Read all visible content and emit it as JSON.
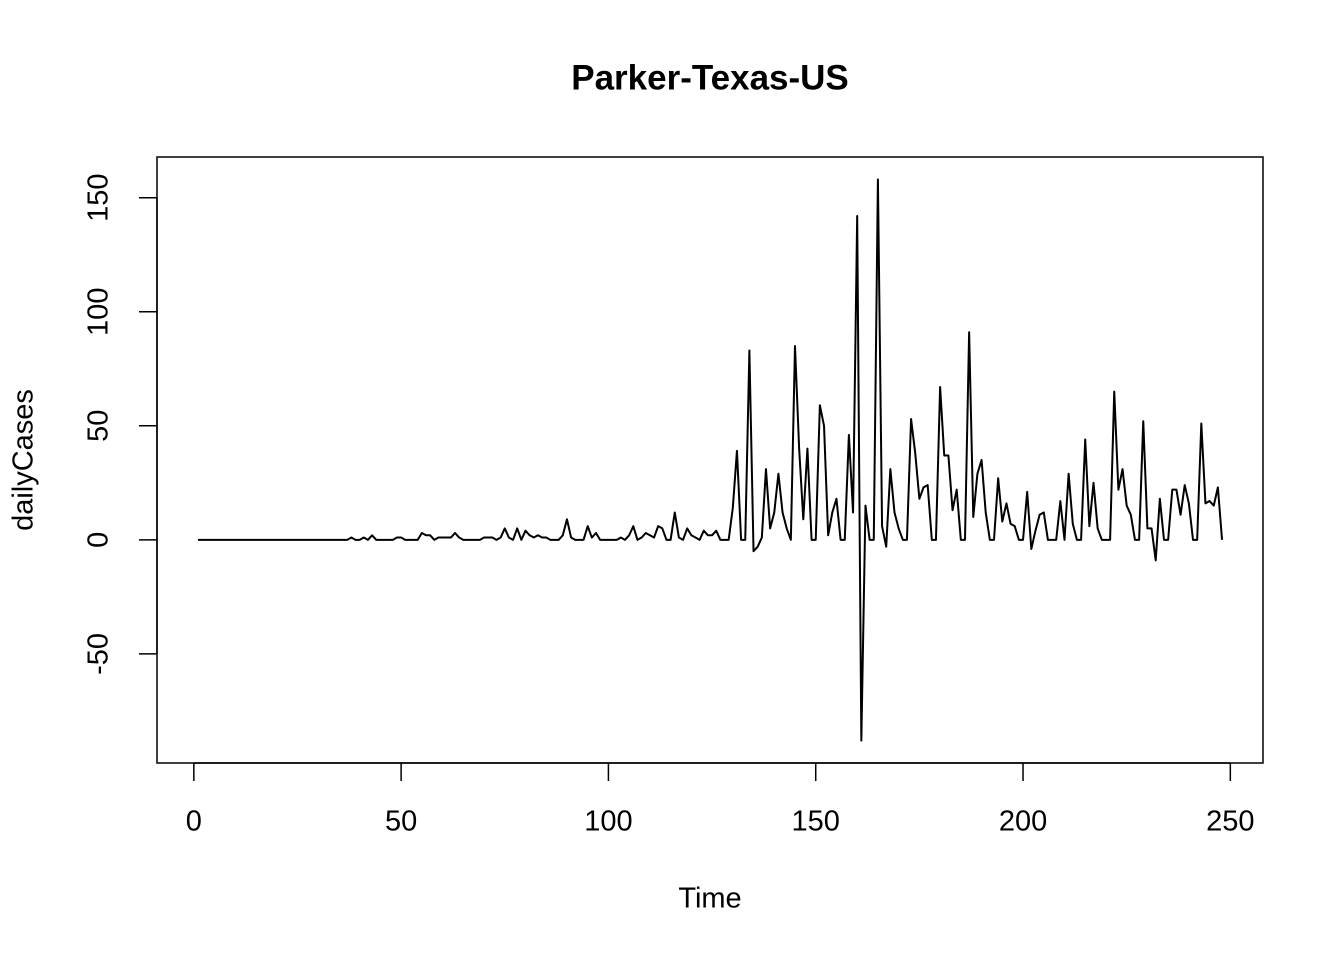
{
  "chart_data": {
    "type": "line",
    "title": "Parker-Texas-US",
    "x_label": "Time",
    "y_label": "dailyCases",
    "xlim": [
      -8.88,
      257.88
    ],
    "ylim": [
      -97.84,
      167.84
    ],
    "xticks": [
      0,
      50,
      100,
      150,
      200,
      250
    ],
    "yticks": [
      -50,
      0,
      50,
      100,
      150
    ],
    "x": [
      1,
      2,
      3,
      4,
      5,
      6,
      7,
      8,
      9,
      10,
      11,
      12,
      13,
      14,
      15,
      16,
      17,
      18,
      19,
      20,
      21,
      22,
      23,
      24,
      25,
      26,
      27,
      28,
      29,
      30,
      31,
      32,
      33,
      34,
      35,
      36,
      37,
      38,
      39,
      40,
      41,
      42,
      43,
      44,
      45,
      46,
      47,
      48,
      49,
      50,
      51,
      52,
      53,
      54,
      55,
      56,
      57,
      58,
      59,
      60,
      61,
      62,
      63,
      64,
      65,
      66,
      67,
      68,
      69,
      70,
      71,
      72,
      73,
      74,
      75,
      76,
      77,
      78,
      79,
      80,
      81,
      82,
      83,
      84,
      85,
      86,
      87,
      88,
      89,
      90,
      91,
      92,
      93,
      94,
      95,
      96,
      97,
      98,
      99,
      100,
      101,
      102,
      103,
      104,
      105,
      106,
      107,
      108,
      109,
      110,
      111,
      112,
      113,
      114,
      115,
      116,
      117,
      118,
      119,
      120,
      121,
      122,
      123,
      124,
      125,
      126,
      127,
      128,
      129,
      130,
      131,
      132,
      133,
      134,
      135,
      136,
      137,
      138,
      139,
      140,
      141,
      142,
      143,
      144,
      145,
      146,
      147,
      148,
      149,
      150,
      151,
      152,
      153,
      154,
      155,
      156,
      157,
      158,
      159,
      160,
      161,
      162,
      163,
      164,
      165,
      166,
      167,
      168,
      169,
      170,
      171,
      172,
      173,
      174,
      175,
      176,
      177,
      178,
      179,
      180,
      181,
      182,
      183,
      184,
      185,
      186,
      187,
      188,
      189,
      190,
      191,
      192,
      193,
      194,
      195,
      196,
      197,
      198,
      199,
      200,
      201,
      202,
      203,
      204,
      205,
      206,
      207,
      208,
      209,
      210,
      211,
      212,
      213,
      214,
      215,
      216,
      217,
      218,
      219,
      220,
      221,
      222,
      223,
      224,
      225,
      226,
      227,
      228,
      229,
      230,
      231,
      232,
      233,
      234,
      235,
      236,
      237,
      238,
      239,
      240,
      241,
      242,
      243,
      244,
      245,
      246,
      247,
      248
    ],
    "series": [
      {
        "name": "dailyCases",
        "color": "#000000",
        "values": [
          0,
          0,
          0,
          0,
          0,
          0,
          0,
          0,
          0,
          0,
          0,
          0,
          0,
          0,
          0,
          0,
          0,
          0,
          0,
          0,
          0,
          0,
          0,
          0,
          0,
          0,
          0,
          0,
          0,
          0,
          0,
          0,
          0,
          0,
          0,
          0,
          0,
          1,
          0,
          0,
          1,
          0,
          2,
          0,
          0,
          0,
          0,
          0,
          1,
          1,
          0,
          0,
          0,
          0,
          3,
          2,
          2,
          0,
          1,
          1,
          1,
          1,
          3,
          1,
          0,
          0,
          0,
          0,
          0,
          1,
          1,
          1,
          0,
          1,
          5,
          1,
          0,
          5,
          0,
          4,
          2,
          1,
          2,
          1,
          1,
          0,
          0,
          0,
          2,
          9,
          1,
          0,
          0,
          0,
          6,
          1,
          3,
          0,
          0,
          0,
          0,
          0,
          1,
          0,
          2,
          6,
          0,
          1,
          3,
          2,
          1,
          6,
          5,
          0,
          0,
          12,
          1,
          0,
          5,
          2,
          1,
          0,
          4,
          2,
          2,
          4,
          0,
          0,
          0,
          14,
          39,
          0,
          0,
          83,
          -5,
          -3,
          1,
          31,
          5,
          12,
          29,
          12,
          5,
          0,
          85,
          40,
          9,
          40,
          0,
          0,
          59,
          50,
          2,
          12,
          18,
          0,
          0,
          46,
          12,
          142,
          -88,
          15,
          0,
          0,
          158,
          6,
          -3,
          31,
          12,
          5,
          0,
          0,
          53,
          38,
          18,
          23,
          24,
          0,
          0,
          67,
          37,
          37,
          13,
          22,
          0,
          0,
          91,
          10,
          29,
          35,
          12,
          0,
          0,
          27,
          8,
          16,
          7,
          6,
          0,
          0,
          21,
          -4,
          4,
          11,
          12,
          0,
          0,
          0,
          17,
          0,
          29,
          7,
          0,
          0,
          44,
          6,
          25,
          5,
          0,
          0,
          0,
          65,
          22,
          31,
          15,
          11,
          0,
          0,
          52,
          5,
          5,
          -9,
          18,
          0,
          0,
          22,
          22,
          11,
          24,
          16,
          0,
          0,
          51,
          16,
          17,
          15,
          23,
          0
        ]
      }
    ]
  }
}
